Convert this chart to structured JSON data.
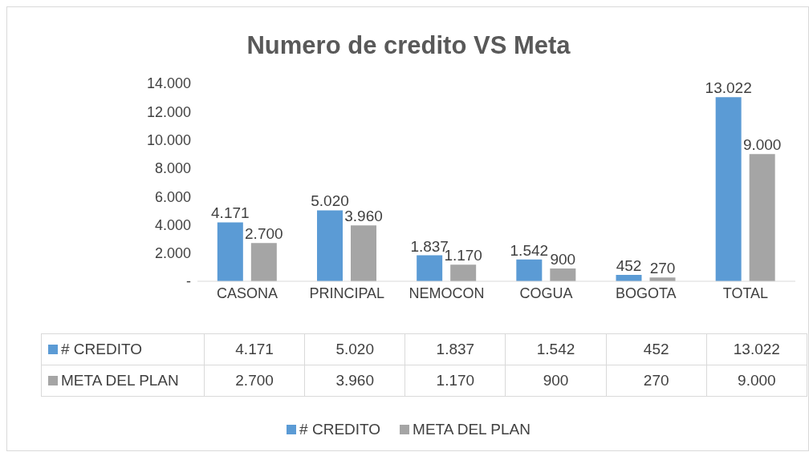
{
  "chart_data": {
    "type": "bar",
    "title": "Numero de credito VS Meta",
    "categories": [
      "CASONA",
      "PRINCIPAL",
      "NEMOCON",
      "COGUA",
      "BOGOTA",
      "TOTAL"
    ],
    "series": [
      {
        "name": "# CREDITO",
        "color": "#5b9bd5",
        "values": [
          4171,
          5020,
          1837,
          1542,
          452,
          13022
        ],
        "value_labels": [
          "4.171",
          "5.020",
          "1.837",
          "1.542",
          "452",
          "13.022"
        ]
      },
      {
        "name": "META DEL PLAN",
        "color": "#a5a5a5",
        "values": [
          2700,
          3960,
          1170,
          900,
          270,
          9000
        ],
        "value_labels": [
          "2.700",
          "3.960",
          "1.170",
          "900",
          "270",
          "9.000"
        ]
      }
    ],
    "ylim": [
      0,
      14000
    ],
    "yticks": [
      {
        "value": 0,
        "label": "-"
      },
      {
        "value": 2000,
        "label": "2.000"
      },
      {
        "value": 4000,
        "label": "4.000"
      },
      {
        "value": 6000,
        "label": "6.000"
      },
      {
        "value": 8000,
        "label": "8.000"
      },
      {
        "value": 10000,
        "label": "10.000"
      },
      {
        "value": 12000,
        "label": "12.000"
      },
      {
        "value": 14000,
        "label": "14.000"
      }
    ],
    "legend": "bottom"
  }
}
